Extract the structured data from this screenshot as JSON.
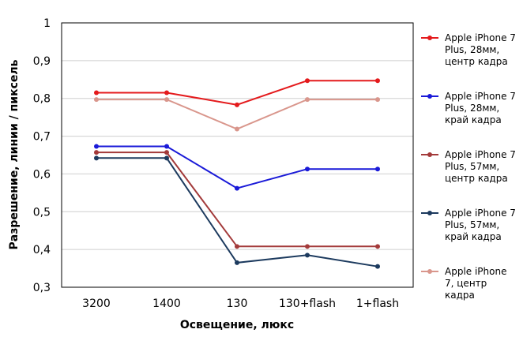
{
  "chart_data": {
    "type": "line",
    "title": "",
    "xlabel": "Освещение,  люкс",
    "ylabel": "Разрешение,  линии  / пиксель",
    "categories": [
      "3200",
      "1400",
      "130",
      "130+flash",
      "1+flash"
    ],
    "ylim": [
      0.3,
      1
    ],
    "yticks": [
      "0,3",
      "0,4",
      "0,5",
      "0,6",
      "0,7",
      "0,8",
      "0,9",
      "1"
    ],
    "grid": "horizontal",
    "legend_position": "right",
    "series": [
      {
        "name": "Apple iPhone 7 Plus, 28мм, центр кадра",
        "legend_lines": [
          "Apple iPhone 7",
          "Plus, 28мм,",
          "центр кадра"
        ],
        "color": "#e41a1c",
        "values": [
          0.815,
          0.815,
          0.783,
          0.847,
          0.847
        ]
      },
      {
        "name": "Apple iPhone 7 Plus, 28мм, край кадра",
        "legend_lines": [
          "Apple iPhone 7",
          "Plus, 28мм,",
          "край кадра"
        ],
        "color": "#1a1ad8",
        "values": [
          0.673,
          0.673,
          0.562,
          0.613,
          0.613
        ]
      },
      {
        "name": "Apple iPhone 7 Plus, 57мм, центр кадра",
        "legend_lines": [
          "Apple iPhone 7",
          "Plus, 57мм,",
          "центр кадра"
        ],
        "color": "#a33a3a",
        "values": [
          0.657,
          0.657,
          0.408,
          0.408,
          0.408
        ]
      },
      {
        "name": "Apple iPhone 7 Plus, 57мм, край кадра",
        "legend_lines": [
          "Apple iPhone 7",
          "Plus, 57мм,",
          "край кадра"
        ],
        "color": "#1c3a5e",
        "values": [
          0.642,
          0.642,
          0.365,
          0.385,
          0.355
        ]
      },
      {
        "name": "Apple iPhone 7, центр кадра",
        "legend_lines": [
          "Apple iPhone",
          "7, центр",
          "кадра"
        ],
        "color": "#d9968c",
        "values": [
          0.797,
          0.797,
          0.719,
          0.797,
          0.797
        ]
      }
    ]
  }
}
